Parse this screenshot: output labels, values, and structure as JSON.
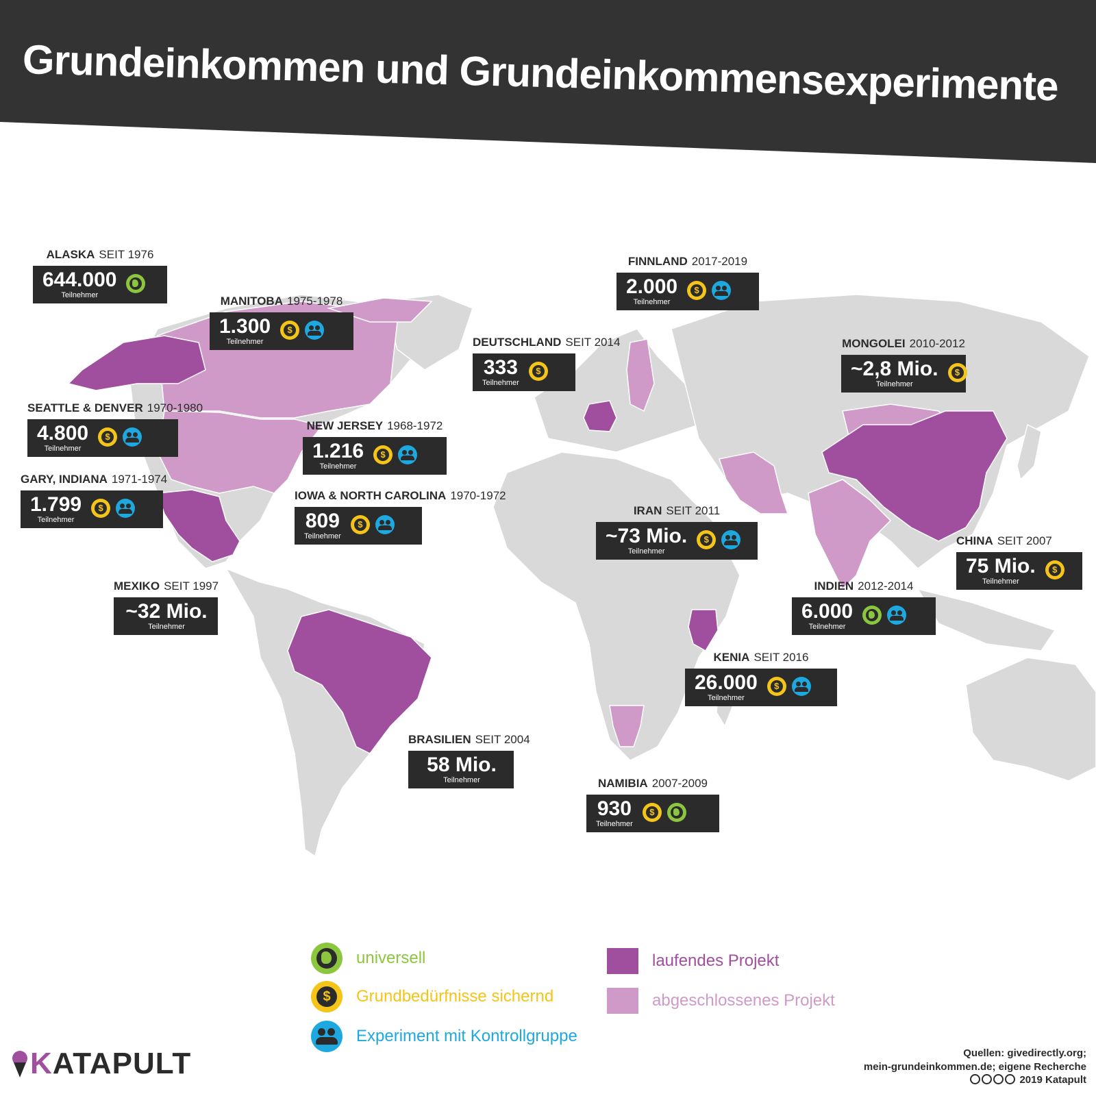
{
  "header": {
    "title": "Grundeinkommen und Grundeinkommensexperimente",
    "band_color": "#333333"
  },
  "colors": {
    "ongoing": "#a04f9e",
    "finished": "#cf9ac8",
    "land": "#d9d9d9",
    "box": "#2b2b2b",
    "universal": "#8cc63f",
    "basic_needs": "#f4c418",
    "control_group": "#1da8df"
  },
  "callouts": [
    {
      "place": "ALASKA",
      "period": "SEIT 1976",
      "value": "644.000",
      "sub": "Teilnehmer",
      "icons": [
        "globe-icon"
      ]
    },
    {
      "place": "MANITOBA",
      "period": "1975-1978",
      "value": "1.300",
      "sub": "Teilnehmer",
      "icons": [
        "coin-icon",
        "group-icon"
      ]
    },
    {
      "place": "SEATTLE & DENVER",
      "period": "1970-1980",
      "value": "4.800",
      "sub": "Teilnehmer",
      "icons": [
        "coin-icon",
        "group-icon"
      ]
    },
    {
      "place": "GARY, INDIANA",
      "period": "1971-1974",
      "value": "1.799",
      "sub": "Teilnehmer",
      "icons": [
        "coin-icon",
        "group-icon"
      ]
    },
    {
      "place": "NEW JERSEY",
      "period": "1968-1972",
      "value": "1.216",
      "sub": "Teilnehmer",
      "icons": [
        "coin-icon",
        "group-icon"
      ]
    },
    {
      "place": "IOWA & NORTH CAROLINA",
      "period": "1970-1972",
      "value": "809",
      "sub": "Teilnehmer",
      "icons": [
        "coin-icon",
        "group-icon"
      ]
    },
    {
      "place": "MEXIKO",
      "period": "SEIT 1997",
      "value": "~32 Mio.",
      "sub": "Teilnehmer",
      "icons": []
    },
    {
      "place": "BRASILIEN",
      "period": "SEIT 2004",
      "value": "58 Mio.",
      "sub": "Teilnehmer",
      "icons": []
    },
    {
      "place": "FINNLAND",
      "period": "2017-2019",
      "value": "2.000",
      "sub": "Teilnehmer",
      "icons": [
        "coin-icon",
        "group-icon"
      ]
    },
    {
      "place": "DEUTSCHLAND",
      "period": "SEIT 2014",
      "value": "333",
      "sub": "Teilnehmer",
      "icons": [
        "coin-icon"
      ]
    },
    {
      "place": "MONGOLEI",
      "period": "2010-2012",
      "value": "~2,8 Mio.",
      "sub": "Teilnehmer",
      "icons": [
        "coin-icon"
      ]
    },
    {
      "place": "IRAN",
      "period": "SEIT 2011",
      "value": "~73 Mio.",
      "sub": "Teilnehmer",
      "icons": [
        "coin-icon",
        "group-icon"
      ]
    },
    {
      "place": "CHINA",
      "period": "SEIT 2007",
      "value": "75 Mio.",
      "sub": "Teilnehmer",
      "icons": [
        "coin-icon"
      ]
    },
    {
      "place": "INDIEN",
      "period": "2012-2014",
      "value": "6.000",
      "sub": "Teilnehmer",
      "icons": [
        "globe-icon",
        "group-icon"
      ]
    },
    {
      "place": "KENIA",
      "period": "SEIT 2016",
      "value": "26.000",
      "sub": "Teilnehmer",
      "icons": [
        "coin-icon",
        "group-icon"
      ]
    },
    {
      "place": "NAMIBIA",
      "period": "2007-2009",
      "value": "930",
      "sub": "Teilnehmer",
      "icons": [
        "coin-icon",
        "globe-icon"
      ]
    }
  ],
  "legend": {
    "universal": "universell",
    "basic_needs": "Grundbedürfnisse sichernd",
    "control_group": "Experiment mit Kontrollgruppe",
    "ongoing": "laufendes Projekt",
    "finished": "abgeschlossenes Projekt"
  },
  "logo": {
    "text_first": "K",
    "text_rest": "ATAPULT"
  },
  "sources": {
    "line1": "Quellen: givedirectly.org;",
    "line2": "mein-grundeinkommen.de; eigene Recherche",
    "line3": "2019 Katapult"
  }
}
